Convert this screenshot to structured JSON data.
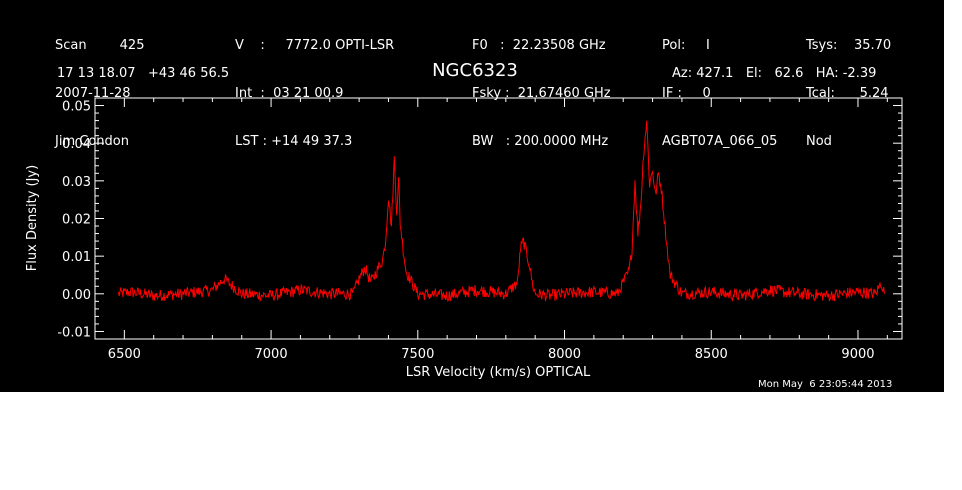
{
  "header": {
    "col1": [
      "Scan        425",
      "2007-11-28",
      "Jim Condon"
    ],
    "col2": [
      "V    :     7772.0 OPTI-LSR",
      "Int  :  03 21 00.9",
      "LST : +14 49 37.3"
    ],
    "col3": [
      "F0   :  22.23508 GHz",
      "Fsky :  21.67460 GHz",
      "BW   : 200.0000 MHz"
    ],
    "col4": [
      "Pol:     I",
      "IF :     0",
      "AGBT07A_066_05"
    ],
    "col5": [
      "Tsys:    35.70",
      "Tcal:      5.24",
      "Nod"
    ],
    "coords": "17 13 18.07   +43 46 56.5",
    "azel": "Az: 427.1   El:   62.6   HA: -2.39"
  },
  "timestamp": "Mon May  6 23:05:44 2013",
  "colors": {
    "background": "#000000",
    "foreground": "#ffffff",
    "trace": "#ff0000"
  },
  "chart_data": {
    "type": "line",
    "title": "NGC6323",
    "xlabel": "LSR Velocity (km/s) OPTICAL",
    "ylabel": "Flux Density (Jy)",
    "xlim": [
      6400,
      9150
    ],
    "ylim": [
      -0.012,
      0.052
    ],
    "xticks": [
      6500,
      7000,
      7500,
      8000,
      8500,
      9000
    ],
    "xtick_labels": [
      "6500",
      "7000",
      "7500",
      "8000",
      "8500",
      "9000"
    ],
    "yticks": [
      -0.01,
      0.0,
      0.01,
      0.02,
      0.03,
      0.04,
      0.05
    ],
    "ytick_labels": [
      "-0.01",
      "0.00",
      "0.01",
      "0.02",
      "0.03",
      "0.04",
      "0.05"
    ],
    "grid": false,
    "series": [
      {
        "x": [
          6480,
          6520,
          6600,
          6700,
          6800,
          6840,
          6900,
          7000,
          7100,
          7200,
          7280,
          7300,
          7320,
          7340,
          7360,
          7380,
          7390,
          7400,
          7410,
          7420,
          7428,
          7435,
          7440,
          7450,
          7460,
          7480,
          7500,
          7600,
          7700,
          7800,
          7840,
          7850,
          7860,
          7870,
          7880,
          7890,
          7900,
          7950,
          8000,
          8100,
          8180,
          8200,
          8220,
          8230,
          8240,
          8250,
          8260,
          8270,
          8280,
          8290,
          8300,
          8310,
          8320,
          8330,
          8340,
          8350,
          8360,
          8380,
          8400,
          8500,
          8600,
          8700,
          8800,
          8900,
          9000,
          9060,
          9080,
          9090
        ],
        "y": [
          0.0,
          0.0005,
          -0.0005,
          0.0,
          0.001,
          0.004,
          0.0,
          -0.0005,
          0.001,
          0.0,
          0.0,
          0.004,
          0.007,
          0.003,
          0.006,
          0.009,
          0.014,
          0.026,
          0.018,
          0.036,
          0.022,
          0.03,
          0.019,
          0.012,
          0.006,
          0.003,
          0.0,
          -0.0005,
          0.001,
          0.0,
          0.003,
          0.012,
          0.014,
          0.011,
          0.008,
          0.003,
          0.0,
          -0.0005,
          0.0,
          0.0005,
          0.0,
          0.003,
          0.006,
          0.012,
          0.03,
          0.016,
          0.024,
          0.038,
          0.046,
          0.029,
          0.033,
          0.026,
          0.032,
          0.028,
          0.02,
          0.012,
          0.005,
          0.0025,
          0.0,
          0.0005,
          -0.0005,
          0.001,
          0.0,
          -0.0005,
          0.0005,
          0.0,
          0.003,
          0.0
        ]
      }
    ]
  }
}
